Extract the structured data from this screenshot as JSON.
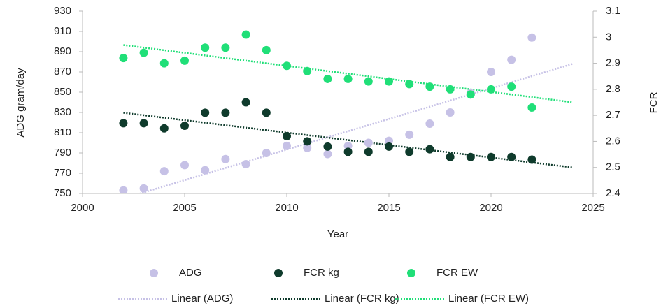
{
  "chart_data": {
    "type": "scatter",
    "x_label": "Year",
    "y_label": "ADG gram/day",
    "y2_label": "FCR",
    "xlim": [
      2000,
      2025
    ],
    "xticks": [
      2000,
      2005,
      2010,
      2015,
      2020,
      2025
    ],
    "ylim": [
      750,
      930
    ],
    "yticks": [
      750,
      770,
      790,
      810,
      830,
      850,
      870,
      890,
      910,
      930
    ],
    "y2lim": [
      2.4,
      3.1
    ],
    "y2ticks": [
      2.4,
      2.5,
      2.6,
      2.7,
      2.8,
      2.9,
      3,
      {
        "value": 3.1,
        "label": "3.1"
      }
    ],
    "series": [
      {
        "name": "ADG",
        "style": "marker",
        "color": "#c6c1e6",
        "x": [
          2002,
          2003,
          2004,
          2005,
          2006,
          2007,
          2008,
          2009,
          2010,
          2011,
          2012,
          2013,
          2014,
          2015,
          2016,
          2017,
          2018,
          2019,
          2020,
          2021,
          2022
        ],
        "values": [
          753,
          755,
          772,
          778,
          773,
          784,
          779,
          790,
          797,
          795,
          789,
          797,
          800,
          802,
          808,
          819,
          830,
          849,
          870,
          882,
          904
        ]
      },
      {
        "name": "FCR kg",
        "style": "marker",
        "color": "#0f3b2c",
        "axis": "y2",
        "x": [
          2002,
          2003,
          2004,
          2005,
          2006,
          2007,
          2008,
          2009,
          2010,
          2011,
          2012,
          2013,
          2014,
          2015,
          2016,
          2017,
          2018,
          2019,
          2020,
          2021,
          2022
        ],
        "values": [
          2.67,
          2.67,
          2.65,
          2.66,
          2.71,
          2.71,
          2.75,
          2.71,
          2.62,
          2.6,
          2.58,
          2.56,
          2.56,
          2.58,
          2.56,
          2.57,
          2.54,
          2.54,
          2.54,
          2.54,
          2.53
        ]
      },
      {
        "name": "FCR EW",
        "style": "marker",
        "color": "#20df78",
        "axis": "y2",
        "x": [
          2002,
          2003,
          2004,
          2005,
          2006,
          2007,
          2008,
          2009,
          2010,
          2011,
          2012,
          2013,
          2014,
          2015,
          2016,
          2017,
          2018,
          2019,
          2020,
          2021,
          2022
        ],
        "values": [
          2.92,
          2.94,
          2.9,
          2.91,
          2.96,
          2.96,
          3.01,
          2.95,
          2.89,
          2.87,
          2.84,
          2.84,
          2.83,
          2.83,
          2.82,
          2.81,
          2.8,
          2.78,
          2.8,
          2.81,
          2.73
        ]
      },
      {
        "name": "Linear (ADG)",
        "style": "dotted-line",
        "color": "#c6c1e6",
        "x": [
          2002,
          2024
        ],
        "values": [
          745,
          878
        ]
      },
      {
        "name": "Linear (FCR kg)",
        "style": "dotted-line",
        "color": "#0f3b2c",
        "axis": "y2",
        "x": [
          2002,
          2024
        ],
        "values": [
          2.71,
          2.5
        ]
      },
      {
        "name": "Linear (FCR EW)",
        "style": "dotted-line",
        "color": "#20df78",
        "axis": "y2",
        "x": [
          2002,
          2024
        ],
        "values": [
          2.97,
          2.75
        ]
      }
    ]
  }
}
